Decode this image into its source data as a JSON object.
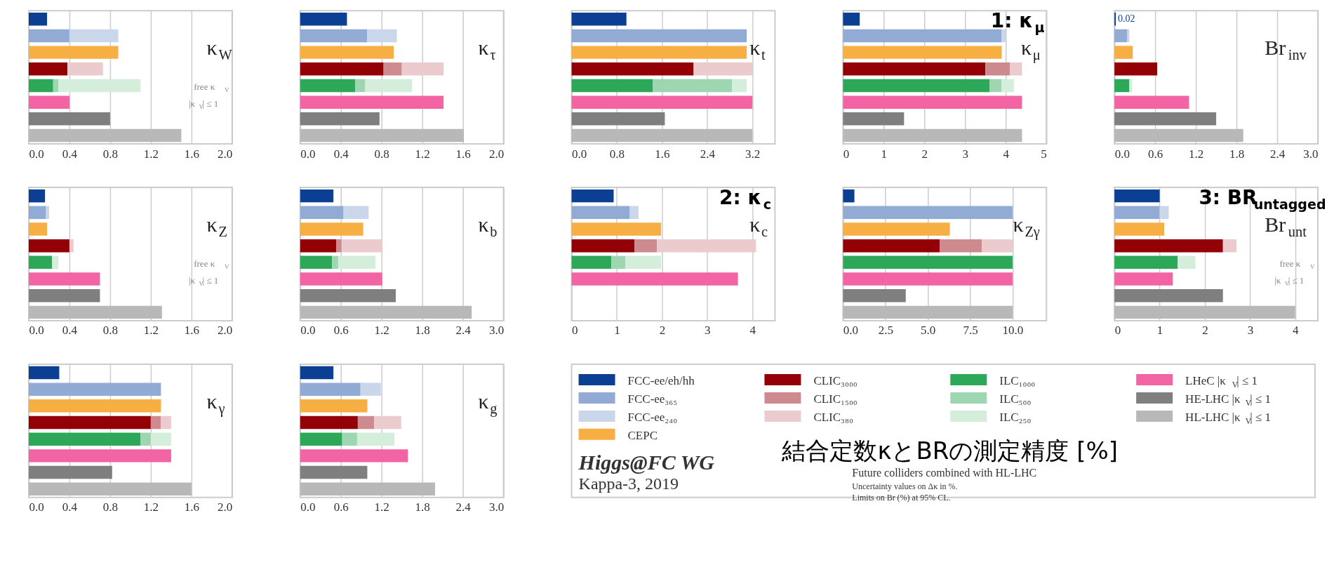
{
  "chart_data": [
    {
      "type": "bar",
      "orientation": "horizontal",
      "stacked": true,
      "title": "κ$_{W}$",
      "categories": [
        null,
        null,
        null,
        null,
        null,
        null,
        null,
        null
      ],
      "xlim": [
        0,
        2
      ],
      "xticks": [
        {
          "value": 0,
          "label": "0.0"
        },
        0.4,
        0.8,
        1.2,
        1.6,
        {
          "value": 2,
          "label": "2.0"
        }
      ],
      "grid": "x",
      "annotations": [
        "free κ$_{V}$",
        "|κ$_{V}$| ≤ 1"
      ],
      "series": [
        {
          "values": [
            0.18,
            0.4,
            0.88,
            0.38,
            0.24,
            0.4,
            0.8,
            1.5
          ],
          "colors": [
            "#0b3f94",
            "#91abd4",
            "#f7ae42",
            "#930006",
            "#2ca858",
            "#f264a3",
            "#7f7f7f",
            "#b8b8b8"
          ]
        },
        {
          "values": [
            null,
            null,
            null,
            null,
            0.05,
            null,
            null,
            null
          ],
          "colors": [
            null,
            null,
            null,
            "#cd8b8f",
            "#9dd6b0",
            null,
            null,
            null
          ]
        },
        {
          "values": [
            null,
            0.48,
            null,
            0.35,
            0.81,
            null,
            null,
            null
          ],
          "colors": [
            null,
            "#cad6ea",
            null,
            "#ebcbcd",
            "#d4eedb",
            null,
            null,
            null
          ]
        }
      ]
    },
    {
      "type": "bar",
      "orientation": "horizontal",
      "stacked": true,
      "title": "κ$_{τ}$",
      "categories": [
        null,
        null,
        null,
        null,
        null,
        null,
        null,
        null
      ],
      "xlim": [
        0,
        2
      ],
      "xticks": [
        {
          "value": 0,
          "label": "0.0"
        },
        0.4,
        0.8,
        1.2,
        1.6,
        {
          "value": 2,
          "label": "2.0"
        }
      ],
      "grid": "x",
      "series": [
        {
          "values": [
            0.46,
            0.66,
            0.92,
            0.82,
            0.54,
            1.41,
            0.78,
            1.61
          ],
          "colors": [
            "#0b3f94",
            "#91abd4",
            "#f7ae42",
            "#930006",
            "#2ca858",
            "#f264a3",
            "#7f7f7f",
            "#b8b8b8"
          ]
        },
        {
          "values": [
            null,
            null,
            null,
            0.18,
            0.1,
            null,
            null,
            null
          ],
          "colors": [
            null,
            null,
            null,
            "#cd8b8f",
            "#9dd6b0",
            null,
            null,
            null
          ]
        },
        {
          "values": [
            null,
            0.29,
            null,
            0.41,
            0.46,
            null,
            null,
            null
          ],
          "colors": [
            null,
            "#cad6ea",
            null,
            "#ebcbcd",
            "#d4eedb",
            null,
            null,
            null
          ]
        }
      ]
    },
    {
      "type": "bar",
      "orientation": "horizontal",
      "stacked": true,
      "title": "κ$_{t}$",
      "categories": [
        null,
        null,
        null,
        null,
        null,
        null,
        null,
        null
      ],
      "xlim": [
        0,
        3.6
      ],
      "xticks": [
        {
          "value": 0,
          "label": "0.0"
        },
        0.8,
        1.6,
        2.4,
        3.2
      ],
      "grid": "x",
      "series": [
        {
          "values": [
            0.97,
            3.1,
            3.1,
            2.16,
            1.44,
            3.2,
            1.65,
            3.2
          ],
          "colors": [
            "#0b3f94",
            "#91abd4",
            "#f7ae42",
            "#930006",
            "#2ca858",
            "#f264a3",
            "#7f7f7f",
            "#b8b8b8"
          ]
        },
        {
          "values": [
            null,
            null,
            null,
            null,
            1.4,
            null,
            null,
            null
          ],
          "colors": [
            null,
            null,
            null,
            "#cd8b8f",
            "#9dd6b0",
            null,
            null,
            null
          ]
        },
        {
          "values": [
            null,
            null,
            null,
            1.04,
            0.26,
            null,
            null,
            null
          ],
          "colors": [
            null,
            "#cad6ea",
            null,
            "#ebcbcd",
            "#d4eedb",
            null,
            null,
            null
          ]
        }
      ]
    },
    {
      "type": "bar",
      "orientation": "horizontal",
      "stacked": true,
      "title": "κ$_{μ}$",
      "categories": [
        null,
        null,
        null,
        null,
        null,
        null,
        null,
        null
      ],
      "xlim": [
        0,
        5
      ],
      "xticks": [
        0,
        1,
        2,
        3,
        4,
        5
      ],
      "grid": "x",
      "annotations": [
        "1: κ$_{μ}$"
      ],
      "series": [
        {
          "values": [
            0.41,
            3.9,
            3.9,
            3.5,
            3.6,
            4.4,
            1.5,
            4.4
          ],
          "colors": [
            "#0b3f94",
            "#91abd4",
            "#f7ae42",
            "#930006",
            "#2ca858",
            "#f264a3",
            "#7f7f7f",
            "#b8b8b8"
          ]
        },
        {
          "values": [
            null,
            null,
            null,
            0.6,
            0.3,
            null,
            null,
            null
          ],
          "colors": [
            null,
            null,
            null,
            "#cd8b8f",
            "#9dd6b0",
            null,
            null,
            null
          ]
        },
        {
          "values": [
            null,
            0.1,
            null,
            0.3,
            0.3,
            null,
            null,
            null
          ],
          "colors": [
            null,
            "#cad6ea",
            null,
            "#ebcbcd",
            "#d4eedb",
            null,
            null,
            null
          ]
        }
      ]
    },
    {
      "type": "bar",
      "orientation": "horizontal",
      "stacked": true,
      "title": "Br$_{inv}$",
      "categories": [
        null,
        null,
        null,
        null,
        null,
        null,
        null,
        null
      ],
      "xlim": [
        0,
        3
      ],
      "xticks": [
        {
          "value": 0,
          "label": "0.0"
        },
        0.6,
        1.2,
        1.8,
        2.4,
        {
          "value": 3,
          "label": "3.0"
        }
      ],
      "grid": "x",
      "series": [
        {
          "values": [
            0.02,
            0.19,
            0.27,
            0.63,
            0.22,
            1.1,
            1.5,
            1.9
          ],
          "colors": [
            "#0b3f94",
            "#91abd4",
            "#f7ae42",
            "#930006",
            "#2ca858",
            "#f264a3",
            "#7f7f7f",
            "#b8b8b8"
          ],
          "value_labels": [
            "0.02",
            null,
            null,
            null,
            null,
            null,
            null,
            null
          ]
        },
        {
          "values": [
            null,
            0.03,
            null,
            null,
            0.04,
            null,
            null,
            null
          ],
          "colors": [
            null,
            "#cad6ea",
            null,
            "#ebcbcd",
            "#d4eedb",
            null,
            null,
            null
          ]
        }
      ]
    },
    {
      "type": "bar",
      "orientation": "horizontal",
      "stacked": true,
      "title": "κ$_{Z}$",
      "categories": [
        null,
        null,
        null,
        null,
        null,
        null,
        null,
        null
      ],
      "xlim": [
        0,
        2
      ],
      "xticks": [
        {
          "value": 0,
          "label": "0.0"
        },
        0.4,
        0.8,
        1.2,
        1.6,
        {
          "value": 2,
          "label": "2.0"
        }
      ],
      "grid": "x",
      "annotations": [
        "free κ$_{V}$",
        "|κ$_{V}$| ≤ 1"
      ],
      "series": [
        {
          "values": [
            0.16,
            0.17,
            0.18,
            0.4,
            0.23,
            0.7,
            0.7,
            1.31
          ],
          "colors": [
            "#0b3f94",
            "#91abd4",
            "#f7ae42",
            "#930006",
            "#2ca858",
            "#f264a3",
            "#7f7f7f",
            "#b8b8b8"
          ]
        },
        {
          "values": [
            null,
            0.03,
            null,
            0.04,
            0.06,
            null,
            null,
            null
          ],
          "colors": [
            null,
            "#cad6ea",
            null,
            "#ebcbcd",
            "#d4eedb",
            null,
            null,
            null
          ]
        }
      ]
    },
    {
      "type": "bar",
      "orientation": "horizontal",
      "stacked": true,
      "title": "κ$_{b}$",
      "categories": [
        null,
        null,
        null,
        null,
        null,
        null,
        null,
        null
      ],
      "xlim": [
        0,
        3
      ],
      "xticks": [
        {
          "value": 0,
          "label": "0.0"
        },
        0.6,
        1.2,
        1.8,
        2.4,
        {
          "value": 3,
          "label": "3.0"
        }
      ],
      "grid": "x",
      "series": [
        {
          "values": [
            0.49,
            0.64,
            0.93,
            0.53,
            0.47,
            1.21,
            1.41,
            2.53
          ],
          "colors": [
            "#0b3f94",
            "#91abd4",
            "#f7ae42",
            "#930006",
            "#2ca858",
            "#f264a3",
            "#7f7f7f",
            "#b8b8b8"
          ]
        },
        {
          "values": [
            null,
            null,
            null,
            0.08,
            0.09,
            null,
            null,
            null
          ],
          "colors": [
            null,
            null,
            null,
            "#cd8b8f",
            "#9dd6b0",
            null,
            null,
            null
          ]
        },
        {
          "values": [
            null,
            0.37,
            null,
            0.6,
            0.55,
            null,
            null,
            null
          ],
          "colors": [
            null,
            "#cad6ea",
            null,
            "#ebcbcd",
            "#d4eedb",
            null,
            null,
            null
          ]
        }
      ]
    },
    {
      "type": "bar",
      "orientation": "horizontal",
      "stacked": true,
      "title": "κ$_{c}$",
      "categories": [
        null,
        null,
        null,
        null,
        null,
        null,
        null,
        null
      ],
      "xlim": [
        0,
        4.5
      ],
      "xticks": [
        0,
        1,
        2,
        3,
        4
      ],
      "grid": "x",
      "annotations": [
        "2: κ$_{c}$"
      ],
      "series": [
        {
          "values": [
            0.93,
            1.28,
            1.98,
            1.39,
            0.88,
            3.68,
            null,
            null
          ],
          "colors": [
            "#0b3f94",
            "#91abd4",
            "#f7ae42",
            "#930006",
            "#2ca858",
            "#f264a3",
            "#7f7f7f",
            "#b8b8b8"
          ]
        },
        {
          "values": [
            null,
            null,
            null,
            0.5,
            0.31,
            null,
            null,
            null
          ],
          "colors": [
            null,
            null,
            null,
            "#cd8b8f",
            "#9dd6b0",
            null,
            null,
            null
          ]
        },
        {
          "values": [
            null,
            0.2,
            null,
            2.19,
            0.79,
            null,
            null,
            null
          ],
          "colors": [
            null,
            "#cad6ea",
            null,
            "#ebcbcd",
            "#d4eedb",
            null,
            null,
            null
          ]
        }
      ]
    },
    {
      "type": "bar",
      "orientation": "horizontal",
      "stacked": true,
      "title": "κ$_{Zγ}$",
      "categories": [
        null,
        null,
        null,
        null,
        null,
        null,
        null,
        null
      ],
      "xlim": [
        0,
        12
      ],
      "xticks": [
        {
          "value": 0,
          "label": "0.0"
        },
        2.5,
        {
          "value": 5,
          "label": "5.0"
        },
        7.5,
        {
          "value": 10,
          "label": "10.0"
        }
      ],
      "grid": "x",
      "series": [
        {
          "values": [
            0.67,
            10,
            6.3,
            5.7,
            10,
            10,
            3.7,
            10
          ],
          "colors": [
            "#0b3f94",
            "#91abd4",
            "#f7ae42",
            "#930006",
            "#2ca858",
            "#f264a3",
            "#7f7f7f",
            "#b8b8b8"
          ]
        },
        {
          "values": [
            null,
            null,
            null,
            2.5,
            null,
            null,
            null,
            null
          ],
          "colors": [
            null,
            null,
            null,
            "#cd8b8f",
            "#9dd6b0",
            null,
            null,
            null
          ]
        },
        {
          "values": [
            null,
            null,
            null,
            1.8,
            null,
            null,
            null,
            null
          ],
          "colors": [
            null,
            "#cad6ea",
            null,
            "#ebcbcd",
            "#d4eedb",
            null,
            null,
            null
          ]
        }
      ]
    },
    {
      "type": "bar",
      "orientation": "horizontal",
      "stacked": true,
      "title": "Br$_{unt}$",
      "categories": [
        null,
        null,
        null,
        null,
        null,
        null,
        null,
        null
      ],
      "xlim": [
        0,
        4.5
      ],
      "xticks": [
        0,
        1,
        2,
        3,
        4
      ],
      "grid": "x",
      "annotations": [
        "3: BR$_{untagged}$",
        "free κ$_{V}$",
        "|κ$_{V}$| ≤ 1"
      ],
      "series": [
        {
          "values": [
            1.0,
            1.0,
            1.1,
            2.4,
            1.4,
            1.29,
            2.4,
            4.0
          ],
          "colors": [
            "#0b3f94",
            "#91abd4",
            "#f7ae42",
            "#930006",
            "#2ca858",
            "#f264a3",
            "#7f7f7f",
            "#b8b8b8"
          ]
        },
        {
          "values": [
            null,
            0.2,
            null,
            0.3,
            0.39,
            null,
            null,
            null
          ],
          "colors": [
            null,
            "#cad6ea",
            null,
            "#ebcbcd",
            "#d4eedb",
            null,
            null,
            null
          ]
        }
      ]
    },
    {
      "type": "bar",
      "orientation": "horizontal",
      "stacked": true,
      "title": "κ$_{γ}$",
      "categories": [
        null,
        null,
        null,
        null,
        null,
        null,
        null,
        null
      ],
      "xlim": [
        0,
        2
      ],
      "xticks": [
        {
          "value": 0,
          "label": "0.0"
        },
        0.4,
        0.8,
        1.2,
        1.6,
        {
          "value": 2,
          "label": "2.0"
        }
      ],
      "grid": "x",
      "series": [
        {
          "values": [
            0.3,
            1.3,
            1.3,
            1.2,
            1.1,
            1.4,
            0.82,
            1.6
          ],
          "colors": [
            "#0b3f94",
            "#91abd4",
            "#f7ae42",
            "#930006",
            "#2ca858",
            "#f264a3",
            "#7f7f7f",
            "#b8b8b8"
          ]
        },
        {
          "values": [
            null,
            null,
            null,
            0.1,
            0.1,
            null,
            null,
            null
          ],
          "colors": [
            null,
            null,
            null,
            "#cd8b8f",
            "#9dd6b0",
            null,
            null,
            null
          ]
        },
        {
          "values": [
            null,
            null,
            null,
            0.1,
            0.2,
            null,
            null,
            null
          ],
          "colors": [
            null,
            "#cad6ea",
            null,
            "#ebcbcd",
            "#d4eedb",
            null,
            null,
            null
          ]
        }
      ]
    },
    {
      "type": "bar",
      "orientation": "horizontal",
      "stacked": true,
      "title": "κ$_{g}$",
      "categories": [
        null,
        null,
        null,
        null,
        null,
        null,
        null,
        null
      ],
      "xlim": [
        0,
        3
      ],
      "xticks": [
        {
          "value": 0,
          "label": "0.0"
        },
        0.6,
        1.2,
        1.8,
        2.4,
        {
          "value": 3,
          "label": "3.0"
        }
      ],
      "grid": "x",
      "series": [
        {
          "values": [
            0.49,
            0.89,
            0.99,
            0.85,
            0.62,
            1.59,
            0.99,
            1.99
          ],
          "colors": [
            "#0b3f94",
            "#91abd4",
            "#f7ae42",
            "#930006",
            "#2ca858",
            "#f264a3",
            "#7f7f7f",
            "#b8b8b8"
          ]
        },
        {
          "values": [
            null,
            null,
            null,
            0.24,
            0.22,
            null,
            null,
            null
          ],
          "colors": [
            null,
            null,
            null,
            "#cd8b8f",
            "#9dd6b0",
            null,
            null,
            null
          ]
        },
        {
          "values": [
            null,
            0.3,
            null,
            0.4,
            0.55,
            null,
            null,
            null
          ],
          "colors": [
            null,
            "#cad6ea",
            null,
            "#ebcbcd",
            "#d4eedb",
            null,
            null,
            null
          ]
        }
      ]
    },
    {
      "type": "other",
      "categories": [
        "FCC-ee/eh/hh",
        "FCC-ee₃₆₅",
        "FCC-ee₂₄₀",
        "CEPC",
        "CLIC₃₀₀₀",
        "CLIC₁₅₀₀",
        "CLIC₃₈₀",
        "ILC₁₀₀₀",
        "ILC₅₀₀",
        "ILC₂₅₀",
        "LHeC |κ$_{V}$| ≤ 1",
        "HE-LHC |κ$_{V}$| ≤ 1",
        "HL-LHC |κ$_{V}$| ≤ 1"
      ],
      "colors": [
        "#0b3f94",
        "#91abd4",
        "#cad6ea",
        "#f7ae42",
        "#930006",
        "#cd8b8f",
        "#ebcbcd",
        "#2ca858",
        "#9dd6b0",
        "#d4eedb",
        "#f264a3",
        "#7f7f7f",
        "#b8b8b8"
      ],
      "annotations": [
        "結合定数κとBRの測定精度 [%]",
        "Higgs@FC WG",
        "Kappa-3, 2019",
        "Future colliders combined with HL-LHC",
        "Uncertainty values on Δκ in %.",
        "Limits on Br (%) at 95% CL."
      ]
    }
  ]
}
